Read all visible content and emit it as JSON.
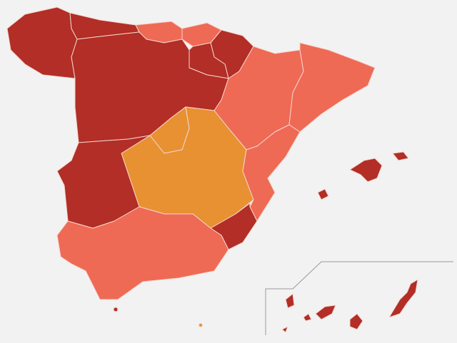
{
  "regions": [
    {
      "color": "#b22e26"
    },
    {
      "color": "#b22e26"
    },
    {
      "color": "#ee6a55"
    },
    {
      "color": "#ee6a55"
    },
    {
      "color": "#b22e26"
    },
    {
      "color": "#b22e26"
    },
    {
      "color": "#b22e26"
    },
    {
      "color": "#ee6a55"
    },
    {
      "color": "#ee6a55"
    },
    {
      "color": "#e89132"
    },
    {
      "color": "#e89132"
    },
    {
      "color": "#b22e26"
    },
    {
      "color": "#ee6a55"
    },
    {
      "color": "#b22e26"
    },
    {
      "color": "#ee6a55"
    },
    {
      "color": "#b22e26"
    },
    {
      "color": "#b22e26"
    },
    {
      "color": "#b22e26"
    },
    {
      "color": "#e89132"
    }
  ]
}
